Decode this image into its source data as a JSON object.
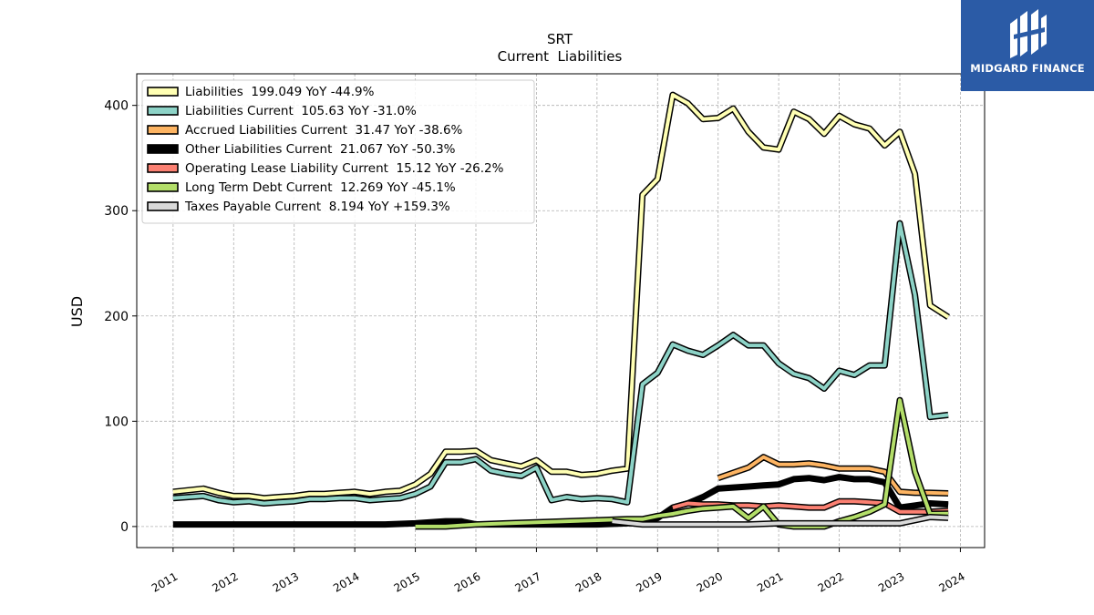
{
  "logo": {
    "text": "MIDGARD FINANCE",
    "color": "#2b5ba6"
  },
  "chart_data": {
    "type": "line",
    "title": "SRT",
    "subtitle": "Current  Liabilities",
    "ylabel": "USD",
    "xlabel": "",
    "xlim": [
      2010.4,
      2024.4
    ],
    "ylim": [
      -20,
      430
    ],
    "yticks": [
      0,
      100,
      200,
      300,
      400
    ],
    "xticks": [
      2011,
      2012,
      2013,
      2014,
      2015,
      2016,
      2017,
      2018,
      2019,
      2020,
      2021,
      2022,
      2023,
      2024
    ],
    "grid": true,
    "legend_position": "top-left",
    "series": [
      {
        "name": "Liabilities  199.049 YoY -44.9%",
        "color": "#ffffb3",
        "x": [
          2011.0,
          2011.5,
          2011.75,
          2012.0,
          2012.25,
          2012.5,
          2012.75,
          2013.0,
          2013.25,
          2013.5,
          2013.75,
          2014.0,
          2014.25,
          2014.5,
          2014.75,
          2015.0,
          2015.25,
          2015.5,
          2015.75,
          2016.0,
          2016.25,
          2016.5,
          2016.75,
          2017.0,
          2017.25,
          2017.5,
          2017.75,
          2018.0,
          2018.25,
          2018.5,
          2018.75,
          2019.0,
          2019.25,
          2019.5,
          2019.75,
          2020.0,
          2020.25,
          2020.5,
          2020.75,
          2021.0,
          2021.25,
          2021.5,
          2021.75,
          2022.0,
          2022.25,
          2022.5,
          2022.75,
          2023.0,
          2023.25,
          2023.5,
          2023.8
        ],
        "y": [
          33,
          36,
          32,
          29,
          29,
          27,
          28,
          29,
          31,
          31,
          32,
          33,
          31,
          33,
          34,
          40,
          50,
          71,
          71,
          72,
          63,
          60,
          57,
          63,
          52,
          52,
          49,
          50,
          53,
          55,
          315,
          330,
          410,
          402,
          387,
          388,
          397,
          375,
          360,
          358,
          394,
          387,
          373,
          390,
          382,
          378,
          362,
          375,
          335,
          210,
          199
        ]
      },
      {
        "name": "Liabilities Current  105.63 YoY -31.0%",
        "color": "#8dd3c7",
        "x": [
          2011.0,
          2011.5,
          2011.75,
          2012.0,
          2012.25,
          2012.5,
          2012.75,
          2013.0,
          2013.25,
          2013.5,
          2013.75,
          2014.0,
          2014.25,
          2014.5,
          2014.75,
          2015.0,
          2015.25,
          2015.5,
          2015.75,
          2016.0,
          2016.25,
          2016.5,
          2016.75,
          2017.0,
          2017.25,
          2017.5,
          2017.75,
          2018.0,
          2018.25,
          2018.5,
          2018.75,
          2019.0,
          2019.25,
          2019.5,
          2019.75,
          2020.0,
          2020.25,
          2020.5,
          2020.75,
          2021.0,
          2021.25,
          2021.5,
          2021.75,
          2022.0,
          2022.25,
          2022.5,
          2022.75,
          2023.0,
          2023.25,
          2023.5,
          2023.8
        ],
        "y": [
          27,
          29,
          25,
          23,
          24,
          22,
          23,
          24,
          26,
          26,
          27,
          27,
          25,
          26,
          27,
          31,
          38,
          61,
          61,
          64,
          53,
          50,
          48,
          56,
          25,
          28,
          26,
          27,
          26,
          23,
          135,
          146,
          173,
          167,
          163,
          172,
          182,
          172,
          172,
          155,
          145,
          141,
          131,
          148,
          144,
          153,
          153,
          288,
          220,
          104,
          106
        ]
      },
      {
        "name": "Accrued Liabilities Current  31.47 YoY -38.6%",
        "color": "#fdb462",
        "x": [
          2020.0,
          2020.5,
          2020.75,
          2021.0,
          2021.25,
          2021.5,
          2021.75,
          2022.0,
          2022.25,
          2022.5,
          2022.75,
          2023.0,
          2023.25,
          2023.5,
          2023.8
        ],
        "y": [
          46,
          56,
          66,
          59,
          59,
          60,
          58,
          55,
          55,
          55,
          52,
          33,
          32,
          32,
          31.5
        ]
      },
      {
        "name": "Other Liabilities Current  21.067 YoY -50.3%",
        "color": "#000000",
        "x": [
          2011.0,
          2011.5,
          2012.0,
          2012.5,
          2013.0,
          2013.5,
          2014.0,
          2014.5,
          2015.0,
          2015.5,
          2015.75,
          2016.0,
          2016.5,
          2017.0,
          2017.5,
          2018.0,
          2018.5,
          2018.75,
          2019.0,
          2019.25,
          2019.5,
          2019.75,
          2020.0,
          2020.25,
          2020.5,
          2020.75,
          2021.0,
          2021.25,
          2021.5,
          2021.75,
          2022.0,
          2022.25,
          2022.5,
          2022.75,
          2023.0,
          2023.25,
          2023.5,
          2023.8
        ],
        "y": [
          2,
          2,
          2,
          2,
          2,
          2,
          2,
          2,
          3,
          5,
          5,
          2,
          2,
          2,
          2,
          2,
          3,
          4,
          8,
          18,
          22,
          28,
          36,
          37,
          38,
          39,
          40,
          45,
          46,
          44,
          47,
          45,
          45,
          42,
          18,
          20,
          22,
          21
        ]
      },
      {
        "name": "Operating Lease Liability Current  15.12 YoY -26.2%",
        "color": "#fb8072",
        "x": [
          2019.25,
          2019.5,
          2019.75,
          2020.0,
          2020.25,
          2020.5,
          2020.75,
          2021.0,
          2021.25,
          2021.5,
          2021.75,
          2022.0,
          2022.25,
          2022.5,
          2022.75,
          2023.0,
          2023.25,
          2023.5,
          2023.8
        ],
        "y": [
          18,
          22,
          21,
          21,
          20,
          20,
          19,
          20,
          19,
          18,
          18,
          24,
          24,
          23,
          22,
          14,
          14,
          14,
          15
        ]
      },
      {
        "name": "Long Term Debt Current  12.269 YoY -45.1%",
        "color": "#b3de69",
        "x": [
          2015.0,
          2015.5,
          2016.0,
          2016.5,
          2017.0,
          2017.5,
          2018.0,
          2018.5,
          2018.75,
          2019.0,
          2019.25,
          2019.5,
          2019.75,
          2020.0,
          2020.25,
          2020.5,
          2020.75,
          2021.0,
          2021.25,
          2021.5,
          2021.75,
          2022.0,
          2022.25,
          2022.5,
          2022.75,
          2023.0,
          2023.25,
          2023.5,
          2023.8
        ],
        "y": [
          0,
          0,
          2,
          3,
          4,
          5,
          6,
          7,
          7,
          10,
          12,
          15,
          17,
          18,
          19,
          8,
          19,
          2,
          0,
          0,
          0,
          5,
          9,
          14,
          21,
          120,
          52,
          12,
          12.3
        ]
      },
      {
        "name": "Taxes Payable Current  8.194 YoY +159.3%",
        "color": "#d9d9d9",
        "x": [
          2018.25,
          2018.75,
          2019.0,
          2019.5,
          2020.0,
          2020.5,
          2021.0,
          2021.5,
          2022.0,
          2022.5,
          2023.0,
          2023.5,
          2023.8
        ],
        "y": [
          5,
          2,
          2,
          2,
          2,
          2,
          3,
          3,
          3,
          3,
          3,
          9,
          8.2
        ]
      }
    ]
  }
}
